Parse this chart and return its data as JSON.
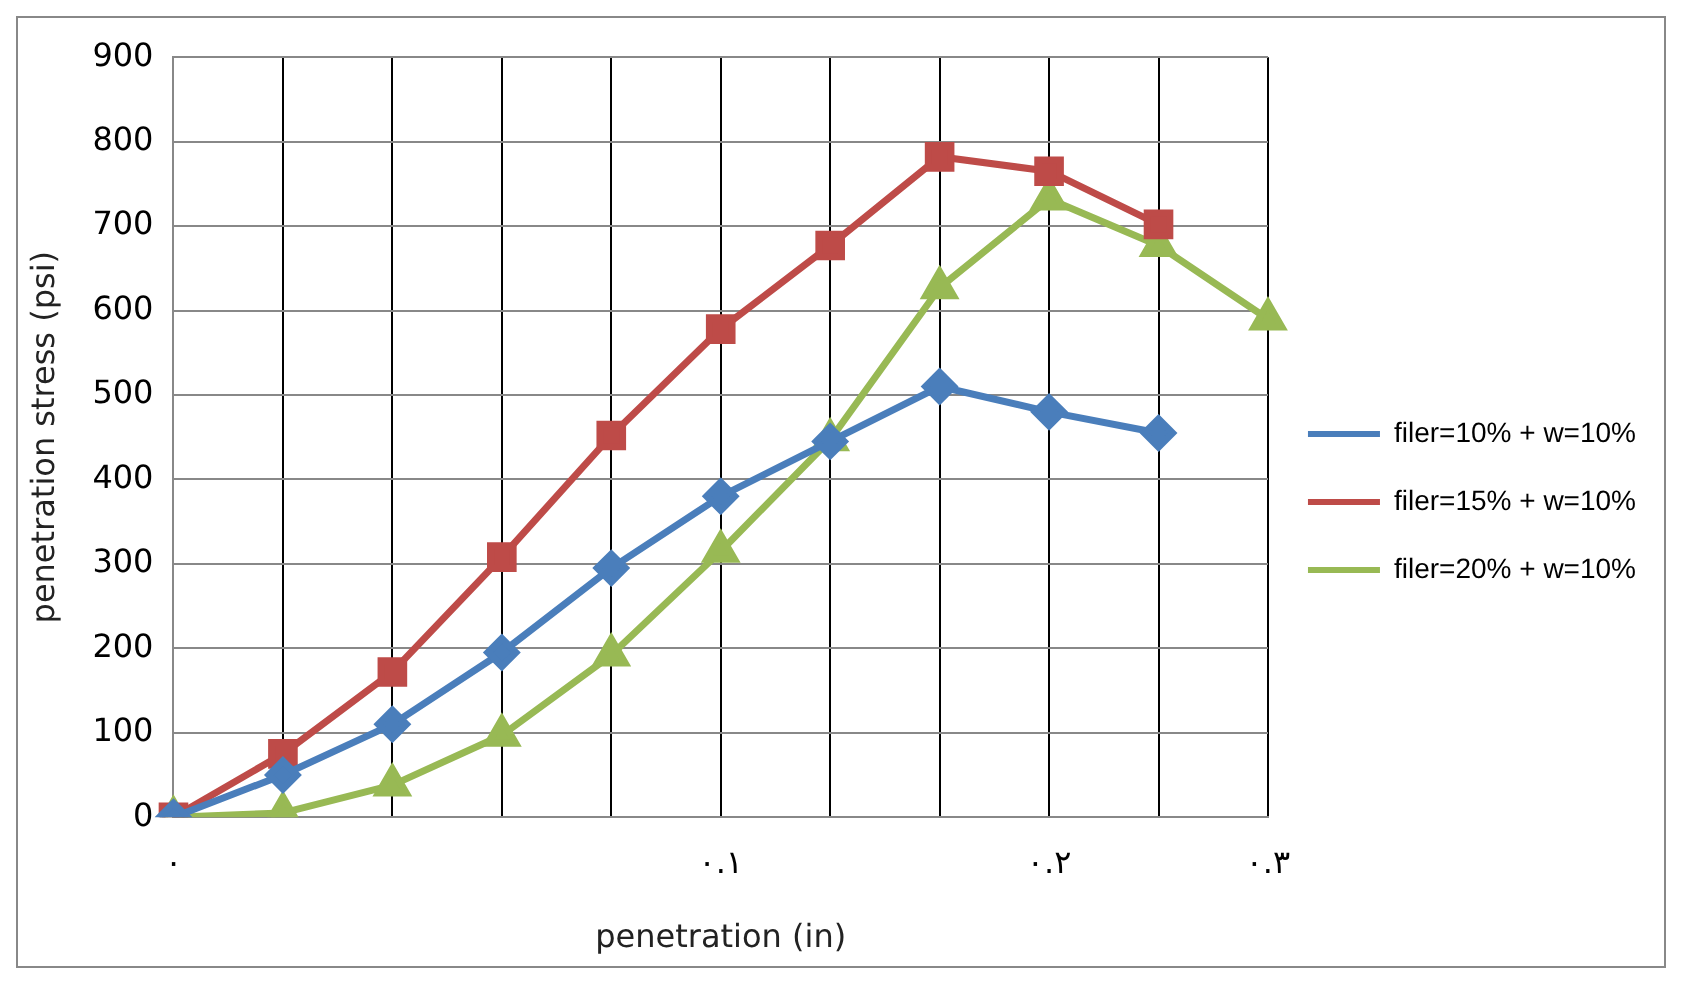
{
  "chart_data": {
    "type": "line",
    "xlabel": "penetration (in)",
    "ylabel": "penetration stress (psi)",
    "categories": [
      "٠",
      null,
      null,
      null,
      null,
      "٠.١",
      null,
      null,
      "٠.٢",
      null,
      "٠.٣"
    ],
    "series": [
      {
        "name": "filer=10% + w=10%",
        "color": "#4a7ebb",
        "marker": "diamond",
        "values": [
          0,
          50,
          110,
          195,
          295,
          380,
          445,
          510,
          480,
          455,
          null
        ]
      },
      {
        "name": "filer=15% + w=10%",
        "color": "#be4b48",
        "marker": "square",
        "values": [
          0,
          75,
          172,
          308,
          452,
          578,
          677,
          782,
          765,
          702,
          null
        ]
      },
      {
        "name": "filer=20% + w=10%",
        "color": "#98b954",
        "marker": "triangle",
        "values": [
          0,
          5,
          38,
          97,
          192,
          315,
          447,
          627,
          732,
          677,
          590
        ]
      }
    ],
    "ylim": [
      0,
      900
    ],
    "yticks": [
      0,
      100,
      200,
      300,
      400,
      500,
      600,
      700,
      800,
      900
    ],
    "grid": true,
    "legend": "right",
    "line_style": "solid"
  }
}
